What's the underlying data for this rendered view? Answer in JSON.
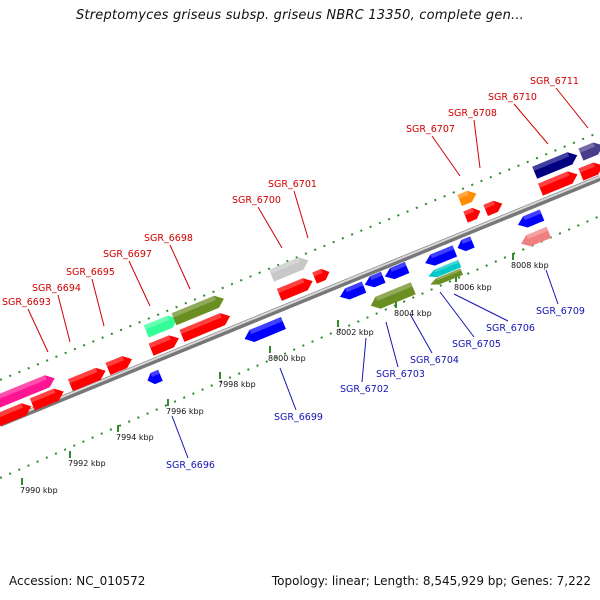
{
  "title": "Streptomyces griseus subsp. griseus NBRC 13350, complete gen...",
  "footer": {
    "accession": "Accession: NC_010572",
    "summary": "Topology: linear; Length: 8,545,929 bp; Genes: 7,222"
  },
  "axis": {
    "unit": "kbp",
    "ticks": [
      "7990 kbp",
      "7992 kbp",
      "7994 kbp",
      "7996 kbp",
      "7998 kbp",
      "8000 kbp",
      "8002 kbp",
      "8004 kbp",
      "8006 kbp",
      "8008 kbp"
    ]
  },
  "genes_forward": [
    {
      "name": "SGR_6693",
      "color": "#ff1493"
    },
    {
      "name": "SGR_6694",
      "color": "#ff0000"
    },
    {
      "name": "SGR_6695",
      "color": "#ff0000"
    },
    {
      "name": "SGR_6697",
      "color": "#33ff99"
    },
    {
      "name": "SGR_6698",
      "color": "#6b8e23"
    },
    {
      "name": "SGR_6700",
      "color": "#c8c8c8"
    },
    {
      "name": "SGR_6701",
      "color": "#ff0000"
    },
    {
      "name": "SGR_6707",
      "color": "#ff8c00"
    },
    {
      "name": "SGR_6708",
      "color": "#ff0000"
    },
    {
      "name": "SGR_6710",
      "color": "#000080"
    },
    {
      "name": "SGR_6711",
      "color": "#483d8b"
    }
  ],
  "genes_reverse": [
    {
      "name": "SGR_6696",
      "color": "#0000ff"
    },
    {
      "name": "SGR_6699",
      "color": "#0000ff"
    },
    {
      "name": "SGR_6702",
      "color": "#0000ff"
    },
    {
      "name": "SGR_6703",
      "color": "#6b8e23"
    },
    {
      "name": "SGR_6704",
      "color": "#0000ff"
    },
    {
      "name": "SGR_6705",
      "color": "#00c8c8"
    },
    {
      "name": "SGR_6706",
      "color": "#6b8e23"
    },
    {
      "name": "SGR_6709",
      "color": "#f08080"
    }
  ]
}
